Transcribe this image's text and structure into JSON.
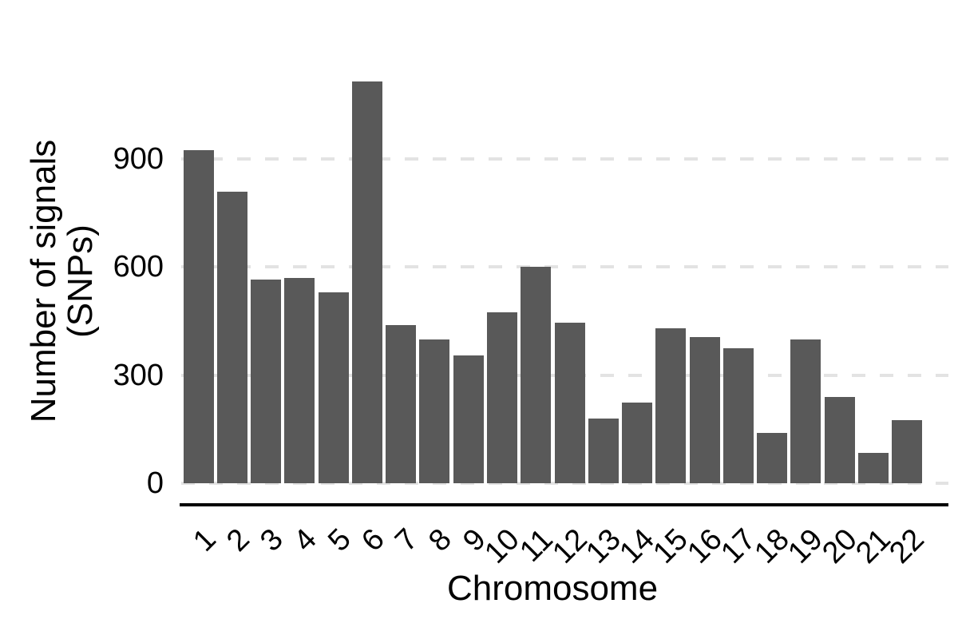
{
  "chart_data": {
    "type": "bar",
    "title": "",
    "xlabel": "Chromosome",
    "ylabel_lines": [
      "Number of signals",
      "(SNPs)"
    ],
    "categories": [
      "1",
      "2",
      "3",
      "4",
      "5",
      "6",
      "7",
      "8",
      "9",
      "10",
      "11",
      "12",
      "13",
      "14",
      "15",
      "16",
      "17",
      "18",
      "19",
      "20",
      "21",
      "22"
    ],
    "values": [
      925,
      810,
      565,
      570,
      530,
      1115,
      440,
      400,
      355,
      475,
      600,
      445,
      180,
      225,
      430,
      405,
      375,
      140,
      400,
      240,
      85,
      175
    ],
    "yticks": [
      0,
      300,
      600,
      900
    ],
    "ytick_labels": [
      "0",
      "300",
      "600",
      "900"
    ],
    "ylim": [
      0,
      1165
    ],
    "legend": null,
    "grid": "horizontal-dashed",
    "colors": {
      "bar": "#595959",
      "gridline": "#e3e3e3",
      "axis_line": "#000000",
      "text": "#000000",
      "background": "#ffffff"
    }
  }
}
